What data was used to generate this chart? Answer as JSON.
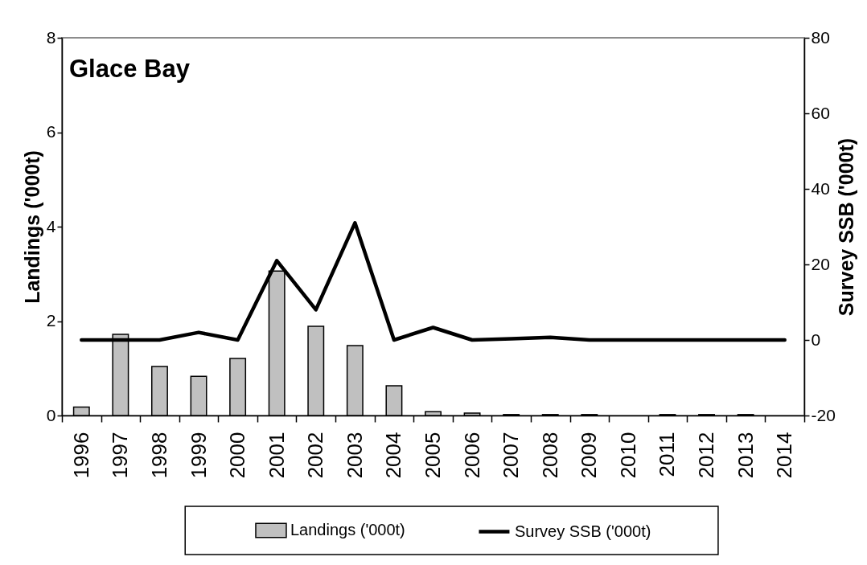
{
  "chart_data": {
    "type": "bar",
    "title": "Glace Bay",
    "ylabel": "Landings ('000t)",
    "y2label": "Survey SSB ('000t)",
    "categories": [
      "1996",
      "1997",
      "1998",
      "1999",
      "2000",
      "2001",
      "2002",
      "2003",
      "2004",
      "2005",
      "2006",
      "2007",
      "2008",
      "2009",
      "2010",
      "2011",
      "2012",
      "2013",
      "2014"
    ],
    "series": [
      {
        "name": "Landings ('000t)",
        "color": "#c0c0c0",
        "values": [
          0.18,
          1.72,
          1.04,
          0.83,
          1.21,
          3.06,
          1.89,
          1.48,
          0.63,
          0.08,
          0.05,
          0.02,
          0.02,
          0.02,
          null,
          0.02,
          0.02,
          0.02,
          null
        ]
      },
      {
        "name": "Survey SSB ('000t)",
        "type": "line",
        "axis": "y2",
        "color": "#000000",
        "values": [
          0,
          0,
          0,
          2,
          0,
          21,
          8,
          31,
          0,
          3.3,
          0,
          0.3,
          0.7,
          0,
          0,
          0,
          0,
          0,
          0
        ]
      }
    ],
    "ylim": [
      0,
      8
    ],
    "yticks": [
      0,
      2,
      4,
      6,
      8
    ],
    "y2lim": [
      -20,
      80
    ],
    "y2ticks": [
      -20,
      0,
      20,
      40,
      60,
      80
    ],
    "legend": "bottom"
  }
}
